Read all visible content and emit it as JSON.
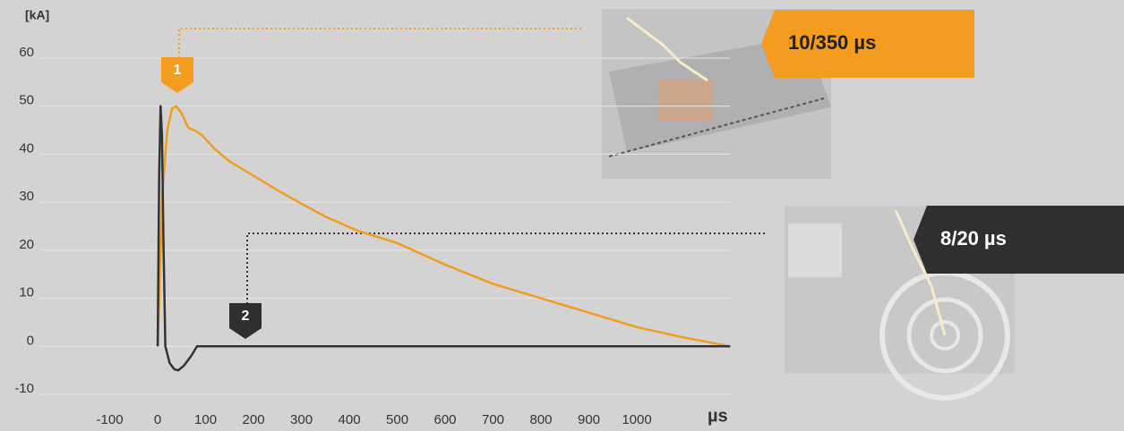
{
  "chart_data": {
    "type": "line",
    "y_label": "[kA]",
    "x_label": "µs",
    "xlim": [
      -245,
      1200
    ],
    "ylim": [
      -10,
      60
    ],
    "xticks": [
      -100,
      0,
      100,
      200,
      300,
      400,
      500,
      600,
      700,
      800,
      900,
      1000
    ],
    "yticks": [
      -10,
      0,
      10,
      20,
      30,
      40,
      50,
      60
    ],
    "grid": true,
    "annotations": [
      "1",
      "2"
    ],
    "series": [
      {
        "name": "10/350 µs",
        "color": "#f39c1f",
        "x": [
          0,
          10,
          20,
          30,
          39,
          50,
          64,
          80,
          92,
          120,
          150,
          200,
          250,
          300,
          350,
          419,
          500,
          600,
          700,
          800,
          900,
          1000,
          1100,
          1195
        ],
        "values": [
          0,
          32,
          45,
          49.5,
          50,
          48.5,
          45.5,
          44.8,
          44,
          41,
          38.5,
          35.5,
          32.5,
          29.7,
          27,
          24,
          21.5,
          17,
          13,
          10,
          7,
          4,
          1.8,
          0
        ]
      },
      {
        "name": "8/20 µs",
        "color": "#333333",
        "x": [
          0,
          3,
          6,
          9,
          12,
          16,
          25,
          35,
          43,
          55,
          70,
          82,
          1195
        ],
        "values": [
          0,
          35,
          50,
          44,
          22,
          0,
          -3.5,
          -4.8,
          -5,
          -4,
          -2,
          0,
          0
        ]
      }
    ]
  }
}
